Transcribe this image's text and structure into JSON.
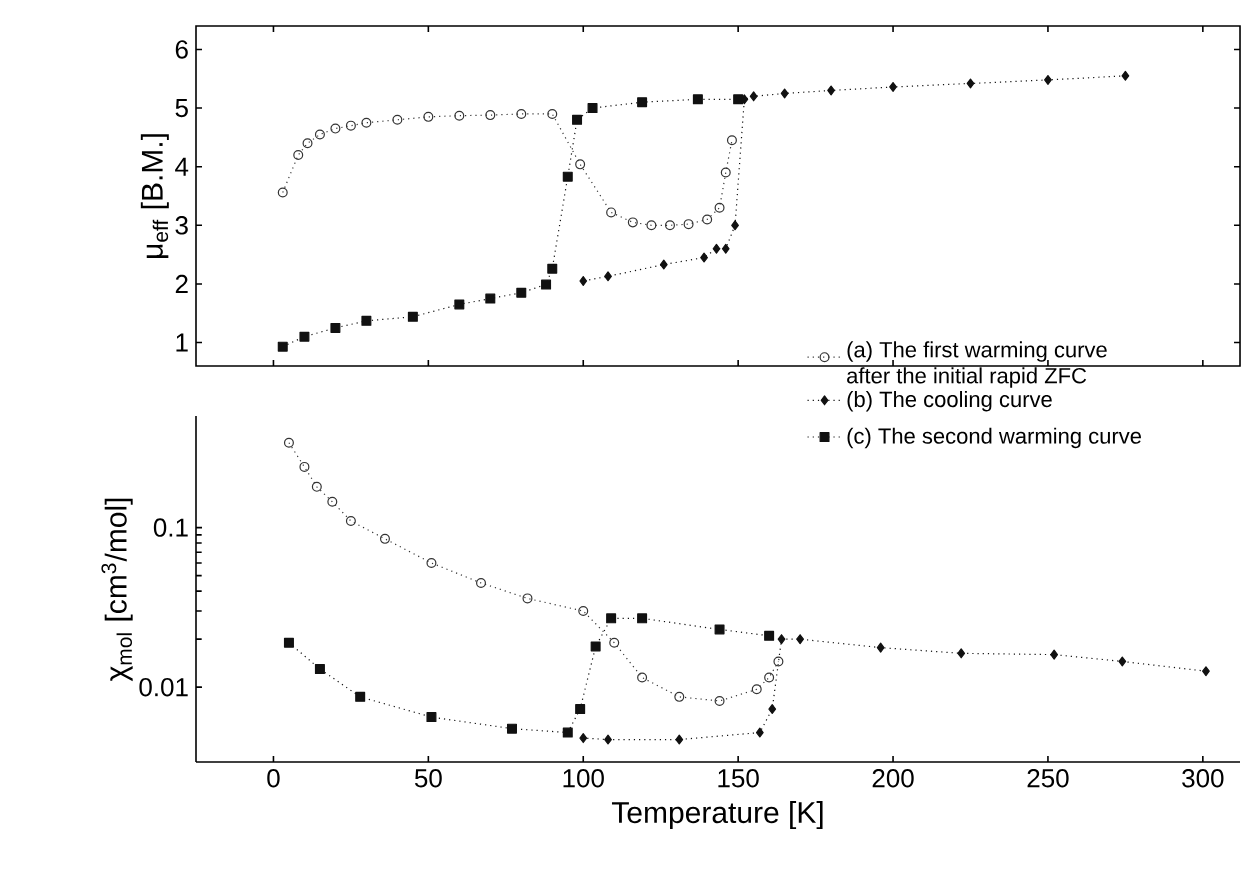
{
  "chart_data": [
    {
      "type": "line",
      "ylabel": "μ$_{eff}$ [B.M.]",
      "xlim": [
        -25,
        312
      ],
      "xticks": [
        0,
        50,
        100,
        150,
        200,
        250,
        300
      ],
      "ylim": [
        0.6,
        6.4
      ],
      "yticks": [
        1,
        2,
        3,
        4,
        5,
        6
      ],
      "tick_labels": "y",
      "grid": false,
      "legend": false,
      "line_style": "dotted",
      "series": [
        {
          "color": "#333333",
          "marker": "circle",
          "x": [
            3,
            8,
            11,
            15,
            20,
            25,
            30,
            40,
            50,
            60,
            70,
            80,
            90,
            99,
            109,
            116,
            122,
            128,
            134,
            140,
            144,
            146,
            148
          ],
          "values": [
            3.56,
            4.2,
            4.4,
            4.55,
            4.65,
            4.7,
            4.75,
            4.8,
            4.85,
            4.87,
            4.88,
            4.9,
            4.9,
            4.04,
            3.22,
            3.05,
            3.0,
            3.0,
            3.02,
            3.1,
            3.3,
            3.9,
            4.45
          ]
        },
        {
          "color": "#111111",
          "marker": "diamond",
          "x": [
            275,
            250,
            225,
            200,
            180,
            165,
            155,
            152,
            149,
            146,
            143,
            139,
            126,
            108,
            100
          ],
          "values": [
            5.55,
            5.48,
            5.42,
            5.36,
            5.3,
            5.25,
            5.2,
            5.15,
            3.0,
            2.6,
            2.6,
            2.45,
            2.33,
            2.13,
            2.05
          ]
        },
        {
          "color": "#111111",
          "marker": "square",
          "x": [
            3,
            10,
            20,
            30,
            45,
            60,
            70,
            80,
            88,
            90,
            95,
            98,
            103,
            119,
            137,
            150
          ],
          "values": [
            0.93,
            1.1,
            1.25,
            1.37,
            1.44,
            1.65,
            1.75,
            1.85,
            1.99,
            2.26,
            3.83,
            4.8,
            5.0,
            5.1,
            5.15,
            5.15
          ]
        }
      ]
    },
    {
      "type": "line",
      "xlabel": "Temperature [K]",
      "ylabel": "χ$_{mol}$ [cm$^{3}$/mol]",
      "log": "y",
      "xlim": [
        -25,
        312
      ],
      "xticks": [
        0,
        50,
        100,
        150,
        200,
        250,
        300
      ],
      "ylim": [
        0.0034,
        0.5
      ],
      "yticks": [
        0.01,
        0.1
      ],
      "grid": false,
      "legend": "top right",
      "line_style": "dotted",
      "series": [
        {
          "name": "(a) The first warming curve after the initial rapid ZFC",
          "color": "#333333",
          "marker": "circle",
          "x": [
            5,
            10,
            14,
            19,
            25,
            36,
            51,
            67,
            82,
            100,
            110,
            119,
            131,
            144,
            156,
            160,
            163
          ],
          "values": [
            0.34,
            0.24,
            0.18,
            0.145,
            0.11,
            0.085,
            0.06,
            0.045,
            0.036,
            0.03,
            0.019,
            0.0115,
            0.0087,
            0.0082,
            0.0097,
            0.0115,
            0.0145
          ]
        },
        {
          "name": "(b) The cooling curve",
          "color": "#111111",
          "marker": "diamond",
          "x": [
            301,
            274,
            252,
            222,
            196,
            170,
            164,
            161,
            157,
            131,
            108,
            100
          ],
          "values": [
            0.0126,
            0.0145,
            0.016,
            0.0163,
            0.0177,
            0.02,
            0.02,
            0.0073,
            0.0052,
            0.0047,
            0.0047,
            0.0048
          ]
        },
        {
          "name": "(c) The second warming curve",
          "color": "#111111",
          "marker": "square",
          "x": [
            5,
            15,
            28,
            51,
            77,
            95,
            99,
            104,
            109,
            119,
            144,
            160
          ],
          "values": [
            0.019,
            0.013,
            0.0087,
            0.0065,
            0.0055,
            0.0052,
            0.0073,
            0.018,
            0.027,
            0.027,
            0.023,
            0.021
          ]
        }
      ]
    }
  ]
}
